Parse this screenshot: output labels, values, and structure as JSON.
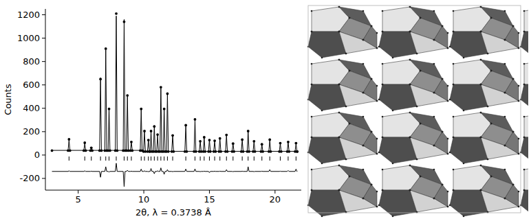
{
  "chart_data": {
    "type": "line",
    "xlabel": "2θ, λ = 0.3738 Å",
    "ylabel": "Counts",
    "xlim": [
      2.5,
      22
    ],
    "ylim": [
      -300,
      1250
    ],
    "xticks": [
      5,
      10,
      15,
      20
    ],
    "yticks": [
      -200,
      0,
      200,
      400,
      600,
      800,
      1000,
      1200
    ],
    "grid": false,
    "x": [
      3,
      4.23,
      4.3,
      4.37,
      5.43,
      5.5,
      5.57,
      5.93,
      6.0,
      6.07,
      6.63,
      6.7,
      6.77,
      7.03,
      7.1,
      7.17,
      7.28,
      7.35,
      7.42,
      7.83,
      7.9,
      7.97,
      8.43,
      8.5,
      8.57,
      8.68,
      8.75,
      8.82,
      8.98,
      9.05,
      9.12,
      9.73,
      9.8,
      9.87,
      9.98,
      10.05,
      10.12,
      10.28,
      10.35,
      10.42,
      10.48,
      10.55,
      10.62,
      10.73,
      10.8,
      10.87,
      10.98,
      11.05,
      11.12,
      11.23,
      11.3,
      11.37,
      11.48,
      11.55,
      11.62,
      11.73,
      11.8,
      11.87,
      12.13,
      12.2,
      12.27,
      13.13,
      13.2,
      13.27,
      13.83,
      13.9,
      13.97,
      14.23,
      14.3,
      14.37,
      14.53,
      14.6,
      14.67,
      14.93,
      15.0,
      15.07,
      15.33,
      15.4,
      15.47,
      15.73,
      15.8,
      15.87,
      16.23,
      16.3,
      16.37,
      16.73,
      16.8,
      16.87,
      17.43,
      17.5,
      17.57,
      17.88,
      17.95,
      18.02,
      18.33,
      18.4,
      18.47,
      18.93,
      19.0,
      19.07,
      19.53,
      19.6,
      19.67,
      20.33,
      20.4,
      20.47,
      20.93,
      21.0,
      21.07,
      21.53,
      21.6,
      21.67,
      21.7
    ],
    "series": [
      {
        "type": "scatter",
        "marker": "circle",
        "color": "#000000",
        "values": [
          38,
          38,
          135,
          38,
          38,
          105,
          38,
          38,
          62,
          38,
          38,
          650,
          38,
          38,
          910,
          38,
          38,
          395,
          38,
          38,
          1210,
          38,
          38,
          1140,
          38,
          38,
          510,
          38,
          38,
          112,
          38,
          38,
          395,
          38,
          30,
          205,
          30,
          30,
          128,
          30,
          30,
          205,
          30,
          30,
          245,
          30,
          30,
          175,
          30,
          30,
          580,
          30,
          30,
          395,
          30,
          30,
          525,
          30,
          30,
          168,
          30,
          30,
          255,
          30,
          30,
          305,
          30,
          30,
          118,
          30,
          30,
          152,
          30,
          30,
          128,
          30,
          30,
          122,
          30,
          30,
          142,
          30,
          30,
          172,
          30,
          30,
          98,
          30,
          30,
          132,
          30,
          30,
          205,
          30,
          30,
          118,
          30,
          30,
          92,
          30,
          30,
          132,
          30,
          30,
          102,
          30,
          30,
          112,
          30,
          30,
          102,
          30,
          30
        ]
      },
      {
        "type": "line",
        "line_style": "solid",
        "color": "#000000",
        "values": [
          40,
          40,
          130,
          40,
          40,
          100,
          40,
          40,
          60,
          40,
          40,
          660,
          40,
          40,
          900,
          40,
          40,
          400,
          40,
          40,
          1190,
          40,
          40,
          1160,
          40,
          40,
          500,
          40,
          40,
          110,
          40,
          40,
          390,
          40,
          32,
          200,
          32,
          32,
          130,
          32,
          32,
          200,
          32,
          32,
          250,
          32,
          32,
          170,
          32,
          32,
          570,
          32,
          32,
          400,
          32,
          32,
          520,
          32,
          32,
          170,
          32,
          32,
          250,
          32,
          32,
          300,
          32,
          32,
          120,
          32,
          32,
          150,
          32,
          32,
          130,
          32,
          32,
          120,
          32,
          32,
          140,
          32,
          32,
          170,
          32,
          32,
          100,
          32,
          32,
          130,
          32,
          32,
          200,
          32,
          32,
          120,
          32,
          32,
          90,
          32,
          32,
          130,
          32,
          32,
          100,
          32,
          32,
          110,
          32,
          32,
          100,
          32,
          32
        ]
      },
      {
        "type": "line",
        "line_style": "solid",
        "color": "#000000",
        "values": [
          -140,
          -140,
          -135,
          -140,
          -140,
          -135,
          -140,
          -140,
          -138,
          -140,
          -140,
          -190,
          -140,
          -140,
          -100,
          -140,
          -140,
          -145,
          -140,
          -140,
          -70,
          -140,
          -140,
          -270,
          -140,
          -140,
          -130,
          -140,
          -140,
          -138,
          -140,
          -140,
          -120,
          -140,
          -140,
          -135,
          -140,
          -140,
          -142,
          -140,
          -140,
          -115,
          -140,
          -140,
          -160,
          -140,
          -140,
          -135,
          -140,
          -140,
          -110,
          -140,
          -140,
          -165,
          -140,
          -140,
          -125,
          -140,
          -140,
          -142,
          -140,
          -140,
          -120,
          -140,
          -140,
          -118,
          -140,
          -140,
          -142,
          -140,
          -140,
          -138,
          -140,
          -140,
          -150,
          -140,
          -140,
          -138,
          -140,
          -140,
          -138,
          -140,
          -140,
          -125,
          -140,
          -140,
          -142,
          -140,
          -140,
          -138,
          -140,
          -140,
          -100,
          -140,
          -140,
          -142,
          -140,
          -140,
          -138,
          -140,
          -140,
          -125,
          -140,
          -140,
          -138,
          -140,
          -140,
          -132,
          -140,
          -140,
          -120,
          -140,
          -140
        ]
      },
      {
        "type": "scatter",
        "marker": "tick",
        "color": "#000000",
        "x": [
          4.3,
          5.5,
          6.0,
          6.7,
          7.1,
          7.35,
          7.9,
          8.5,
          8.75,
          9.05,
          9.8,
          10.05,
          10.35,
          10.55,
          10.8,
          11.05,
          11.3,
          11.55,
          11.8,
          12.2,
          13.2,
          13.9,
          14.3,
          14.6,
          15.0,
          15.4,
          15.8,
          16.3,
          16.8,
          17.5,
          17.95,
          18.4,
          19.0,
          19.6,
          20.4,
          21.0,
          21.6
        ],
        "values": [
          -30,
          -30,
          -30,
          -30,
          -30,
          -30,
          -30,
          -30,
          -30,
          -30,
          -30,
          -30,
          -30,
          -30,
          -30,
          -30,
          -30,
          -30,
          -30,
          -30,
          -30,
          -30,
          -30,
          -30,
          -30,
          -30,
          -30,
          -30,
          -30,
          -30,
          -30,
          -30,
          -30,
          -30,
          -30,
          -30,
          -30
        ]
      }
    ]
  }
}
